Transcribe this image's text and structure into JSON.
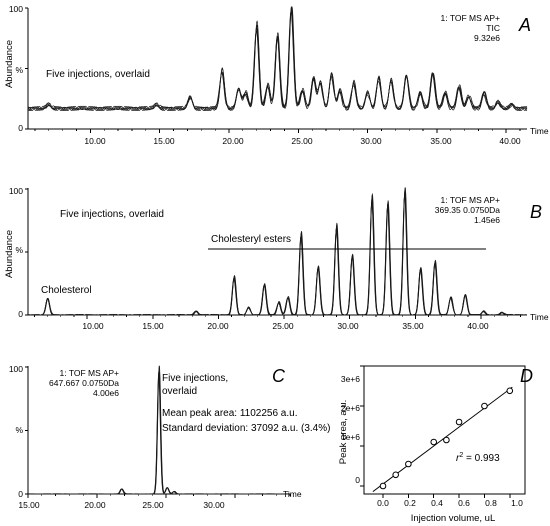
{
  "chart_data": [
    {
      "panel": "A",
      "type": "line",
      "info": [
        "1: TOF MS AP+",
        "TIC",
        "9.32e6"
      ],
      "ylabel": "Abundance",
      "xlabel": "Time",
      "annotation": "Five injections, overlaid",
      "xlim": [
        5.5,
        41.5
      ],
      "ylim": [
        0,
        100
      ],
      "x_ticks": [
        "10.00",
        "15.00",
        "20.00",
        "25.00",
        "30.00",
        "35.00",
        "40.00"
      ],
      "y_ticks": [
        "100",
        "%",
        "0"
      ],
      "peaks": [
        {
          "x": 7.0,
          "y": 20
        },
        {
          "x": 14.8,
          "y": 20
        },
        {
          "x": 17.2,
          "y": 26
        },
        {
          "x": 19.5,
          "y": 48
        },
        {
          "x": 20.7,
          "y": 33
        },
        {
          "x": 21.2,
          "y": 30
        },
        {
          "x": 22.0,
          "y": 85
        },
        {
          "x": 22.8,
          "y": 36
        },
        {
          "x": 23.5,
          "y": 77
        },
        {
          "x": 24.5,
          "y": 100
        },
        {
          "x": 25.3,
          "y": 32
        },
        {
          "x": 26.1,
          "y": 42
        },
        {
          "x": 26.6,
          "y": 38
        },
        {
          "x": 27.4,
          "y": 45
        },
        {
          "x": 28.0,
          "y": 32
        },
        {
          "x": 29.0,
          "y": 38
        },
        {
          "x": 30.0,
          "y": 30
        },
        {
          "x": 30.8,
          "y": 42
        },
        {
          "x": 31.7,
          "y": 40
        },
        {
          "x": 32.8,
          "y": 44
        },
        {
          "x": 33.8,
          "y": 30
        },
        {
          "x": 34.7,
          "y": 46
        },
        {
          "x": 35.6,
          "y": 30
        },
        {
          "x": 36.6,
          "y": 35
        },
        {
          "x": 37.3,
          "y": 27
        },
        {
          "x": 38.4,
          "y": 30
        },
        {
          "x": 39.4,
          "y": 22
        },
        {
          "x": 40.4,
          "y": 20
        }
      ],
      "baseline": 17
    },
    {
      "panel": "B",
      "type": "line",
      "info": [
        "1: TOF MS AP+",
        "369.35 0.0750Da",
        "1.45e6"
      ],
      "ylabel": "Abundance",
      "xlabel": "Time",
      "annotation": "Five injections, overlaid",
      "labels": [
        "Cholesterol",
        "Cholesteryl esters"
      ],
      "xlim": [
        5.5,
        43.5
      ],
      "ylim": [
        0,
        100
      ],
      "x_ticks": [
        "10.00",
        "15.00",
        "20.00",
        "25.00",
        "30.00",
        "35.00",
        "40.00"
      ],
      "y_ticks": [
        "100",
        "%",
        "0"
      ],
      "peaks": [
        {
          "x": 7.0,
          "y": 13
        },
        {
          "x": 18.3,
          "y": 3
        },
        {
          "x": 21.2,
          "y": 30
        },
        {
          "x": 22.3,
          "y": 6
        },
        {
          "x": 23.5,
          "y": 24
        },
        {
          "x": 24.6,
          "y": 10
        },
        {
          "x": 25.3,
          "y": 14
        },
        {
          "x": 26.3,
          "y": 64
        },
        {
          "x": 27.6,
          "y": 38
        },
        {
          "x": 29.0,
          "y": 70
        },
        {
          "x": 30.2,
          "y": 47
        },
        {
          "x": 31.7,
          "y": 93
        },
        {
          "x": 32.9,
          "y": 88
        },
        {
          "x": 34.2,
          "y": 98
        },
        {
          "x": 35.4,
          "y": 37
        },
        {
          "x": 36.5,
          "y": 42
        },
        {
          "x": 37.7,
          "y": 14
        },
        {
          "x": 38.8,
          "y": 16
        },
        {
          "x": 40.2,
          "y": 3
        },
        {
          "x": 41.6,
          "y": 2
        }
      ],
      "baseline": 0
    },
    {
      "panel": "C",
      "type": "line",
      "info": [
        "1: TOF MS AP+",
        "647.667 0.0750Da",
        "4.00e6"
      ],
      "xlabel": "Time",
      "annotation": [
        "Five injections,",
        "overlaid"
      ],
      "stats": [
        "Mean peak area: 1102256 a.u.",
        "Standard deviation: 37092 a.u. (3.4%)"
      ],
      "xlim": [
        15.0,
        34.0
      ],
      "ylim": [
        0,
        100
      ],
      "x_ticks": [
        "15.00",
        "20.00",
        "25.00",
        "30.00"
      ],
      "y_ticks": [
        "100",
        "%",
        "0"
      ],
      "peaks": [
        {
          "x": 21.8,
          "y": 4
        },
        {
          "x": 24.5,
          "y": 98
        },
        {
          "x": 25.1,
          "y": 5
        },
        {
          "x": 25.6,
          "y": 2
        }
      ],
      "baseline": 0
    },
    {
      "panel": "D",
      "type": "scatter",
      "xlabel": "Injection volume, uL",
      "ylabel": "Peak area, a.u.",
      "r2_prefix": "r",
      "r2_value": " = 0.993",
      "xlim": [
        -0.15,
        1.12
      ],
      "ylim": [
        -0.2,
        3.0
      ],
      "y_unit": 1000000,
      "x_ticks": [
        "0.0",
        "0.2",
        "0.4",
        "0.6",
        "0.8",
        "1.0"
      ],
      "y_ticks": [
        "0",
        "1e+6",
        "2e+6",
        "3e+6"
      ],
      "points": [
        {
          "x": 0.0,
          "y": 0.0
        },
        {
          "x": 0.1,
          "y": 0.28
        },
        {
          "x": 0.2,
          "y": 0.55
        },
        {
          "x": 0.4,
          "y": 1.1
        },
        {
          "x": 0.5,
          "y": 1.15
        },
        {
          "x": 0.6,
          "y": 1.6
        },
        {
          "x": 0.8,
          "y": 2.0
        },
        {
          "x": 1.0,
          "y": 2.38
        }
      ],
      "fit": {
        "x0": -0.08,
        "y0": -0.14,
        "x1": 1.02,
        "y1": 2.47
      }
    }
  ]
}
